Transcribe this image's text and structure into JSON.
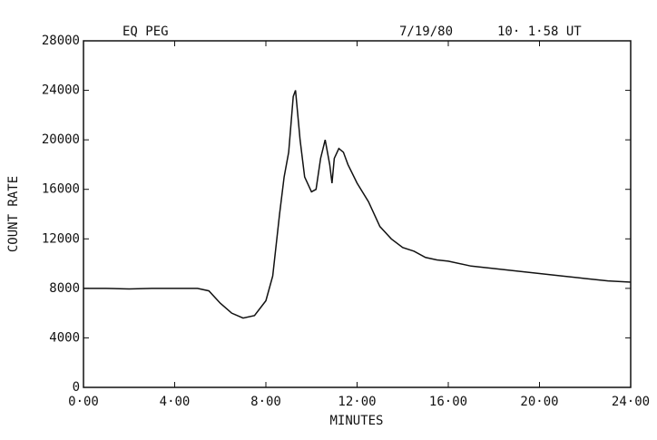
{
  "chart_data": {
    "type": "line",
    "title_left": "EQ PEG",
    "date": "7/19/80",
    "time": "10· 1·58  UT",
    "xlabel": "MINUTES",
    "ylabel": "COUNT RATE",
    "xlim": [
      0,
      24
    ],
    "ylim": [
      0,
      28000
    ],
    "xticks": [
      {
        "value": 0,
        "label": "0·00"
      },
      {
        "value": 4,
        "label": "4·00"
      },
      {
        "value": 8,
        "label": "8·00"
      },
      {
        "value": 12,
        "label": "12·00"
      },
      {
        "value": 16,
        "label": "16·00"
      },
      {
        "value": 20,
        "label": "20·00"
      },
      {
        "value": 24,
        "label": "24·00"
      }
    ],
    "yticks": [
      0,
      4000,
      8000,
      12000,
      16000,
      20000,
      24000,
      28000
    ],
    "color": "#111111",
    "x": [
      0,
      1,
      2,
      3,
      4,
      5,
      5.5,
      6,
      6.5,
      7,
      7.5,
      8,
      8.3,
      8.6,
      8.8,
      9,
      9.2,
      9.3,
      9.5,
      9.7,
      10,
      10.2,
      10.4,
      10.6,
      10.8,
      10.9,
      11,
      11.2,
      11.4,
      11.6,
      12,
      12.5,
      13,
      13.5,
      14,
      14.5,
      15,
      15.5,
      16,
      17,
      18,
      19,
      20,
      21,
      22,
      23,
      24
    ],
    "values": [
      8000,
      8000,
      7950,
      8000,
      8000,
      8000,
      7800,
      6800,
      6000,
      5600,
      5800,
      7000,
      9000,
      14000,
      17000,
      19000,
      23500,
      24000,
      20000,
      17000,
      15800,
      16000,
      18500,
      20000,
      18000,
      16500,
      18500,
      19300,
      19000,
      18000,
      16500,
      15000,
      13000,
      12000,
      11300,
      11000,
      10500,
      10300,
      10200,
      9800,
      9600,
      9400,
      9200,
      9000,
      8800,
      8600,
      8500
    ]
  }
}
